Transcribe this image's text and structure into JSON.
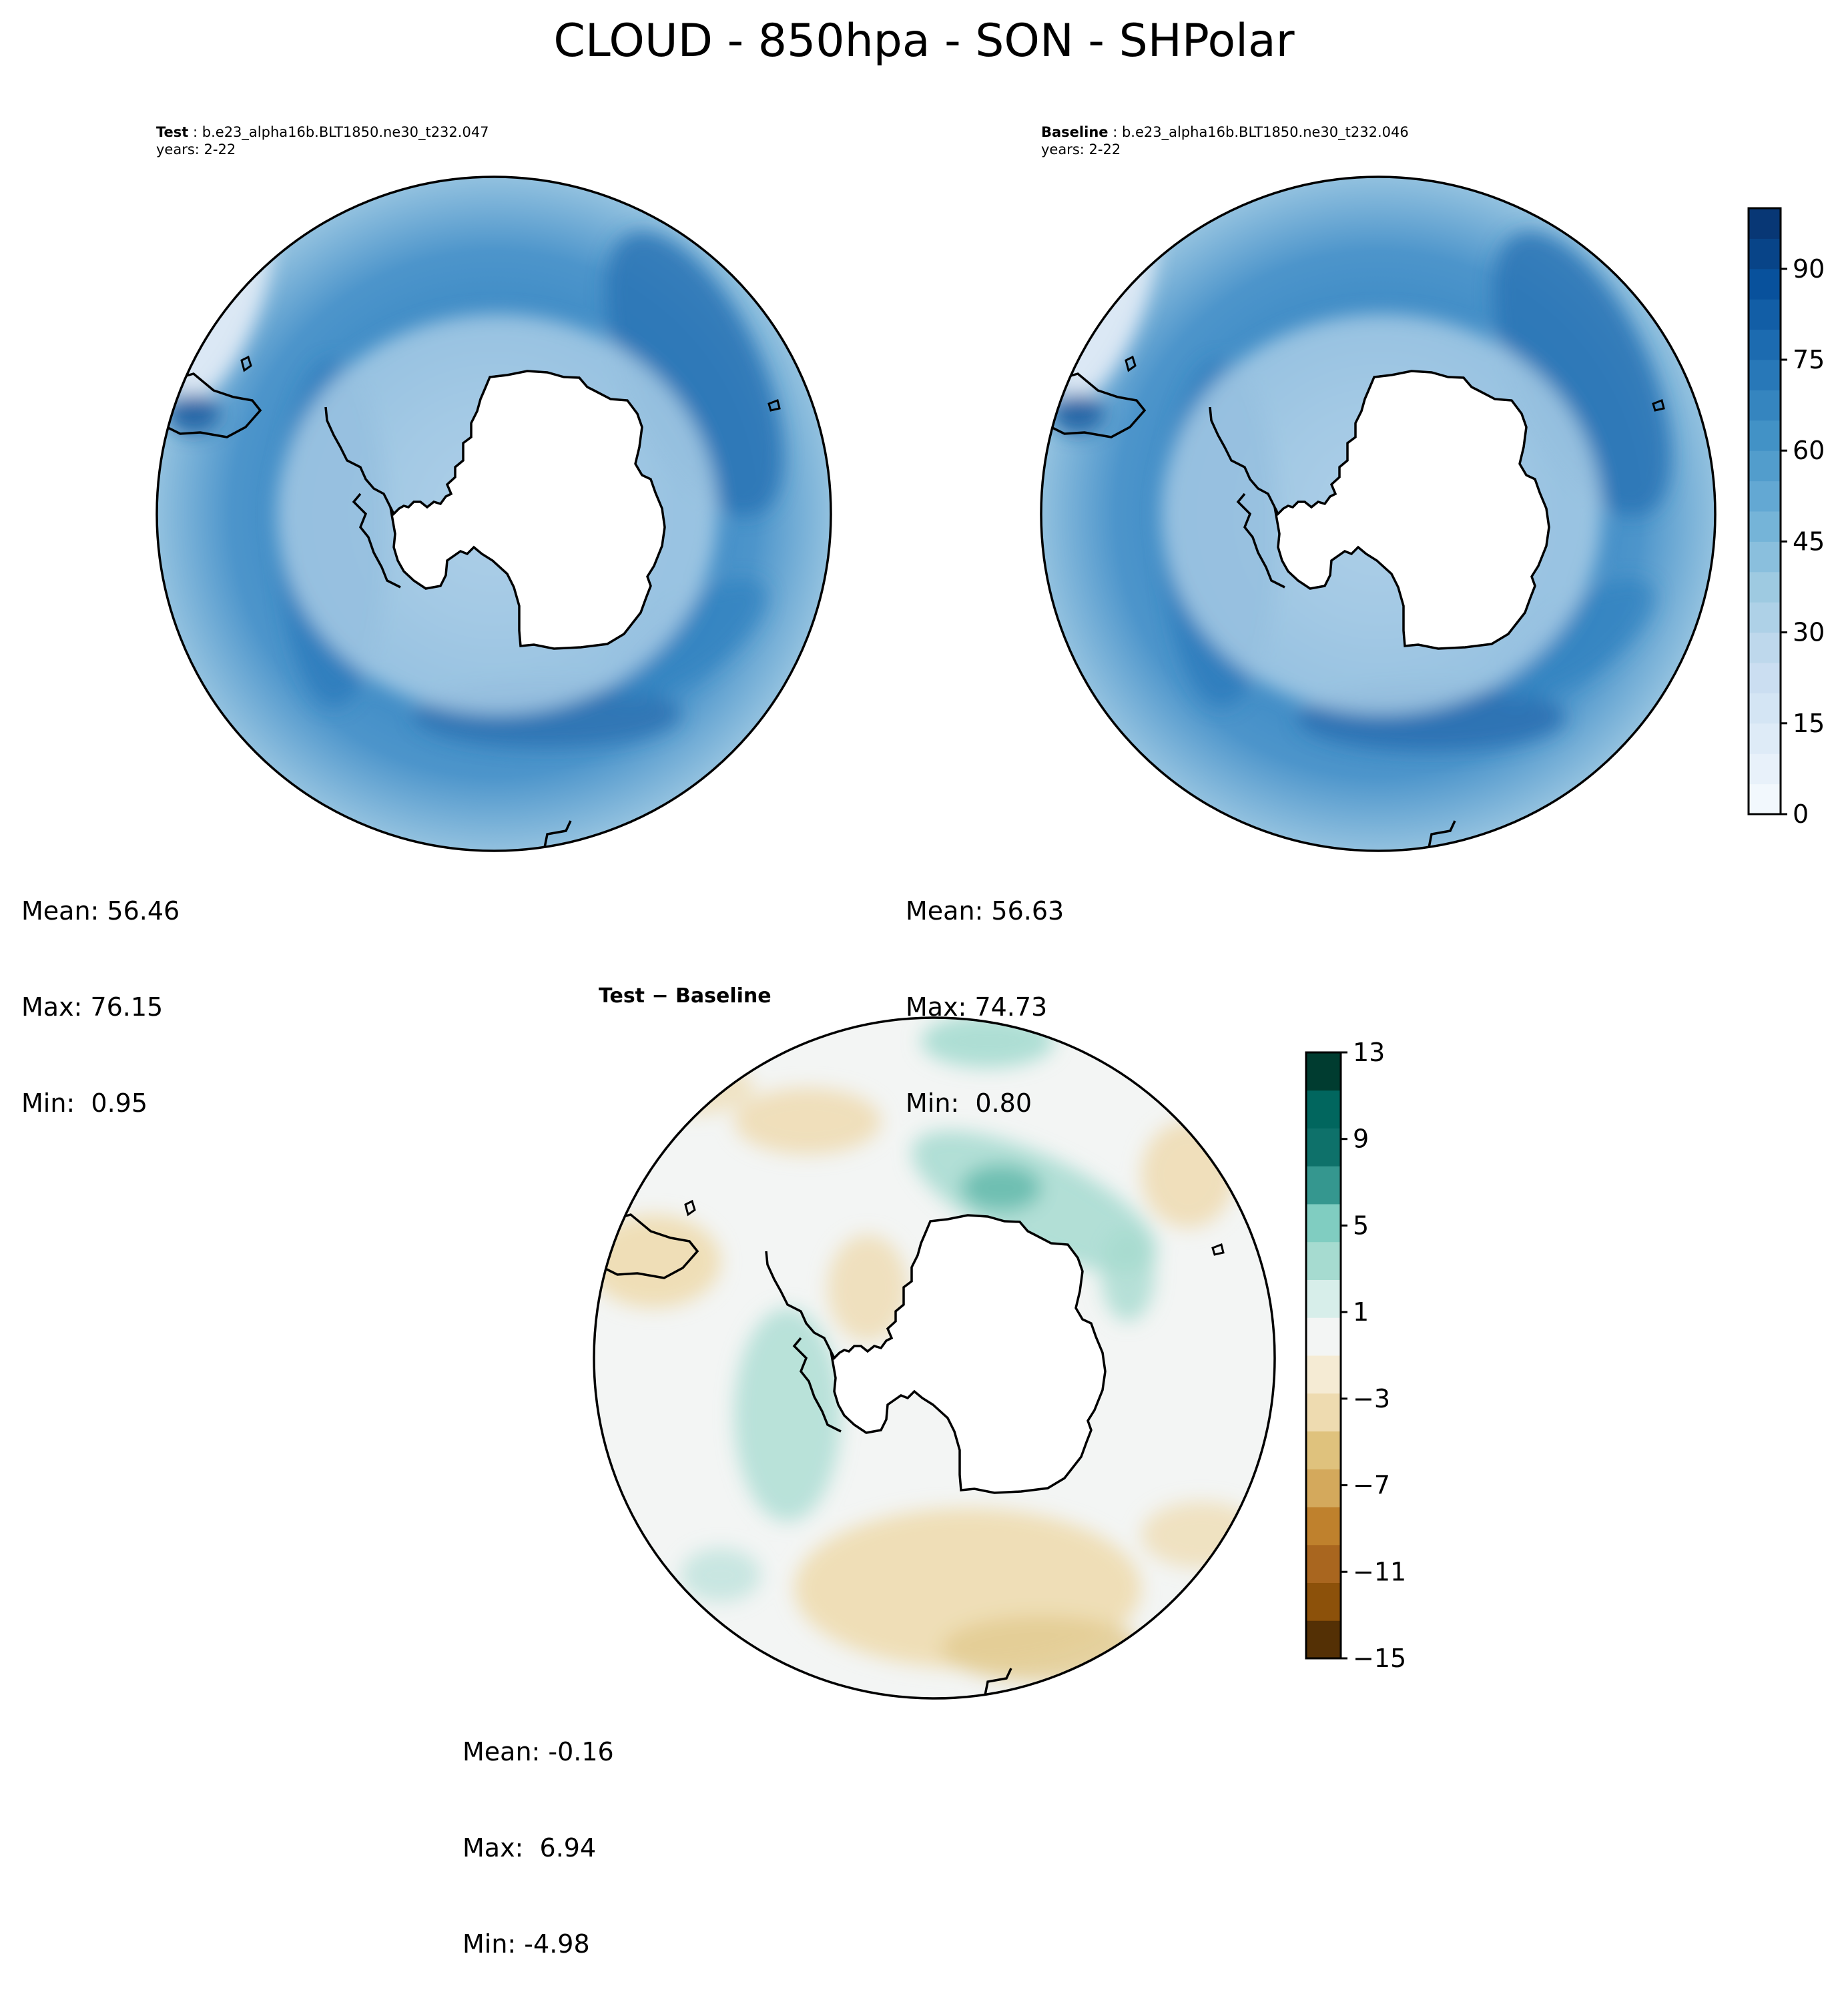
{
  "figure": {
    "title": "CLOUD - 850hpa - SON - SHPolar"
  },
  "panels": {
    "test": {
      "label": "Test",
      "case": "b.e23_alpha16b.BLT1850.ne30_t232.047",
      "years": "years: 2-22",
      "mean": "Mean: 56.46",
      "max": "Max: 76.15",
      "min": "Min:  0.95"
    },
    "baseline": {
      "label": "Baseline",
      "case": "b.e23_alpha16b.BLT1850.ne30_t232.046",
      "years": "years: 2-22",
      "mean": "Mean: 56.63",
      "max": "Max: 74.73",
      "min": "Min:  0.80"
    },
    "diff": {
      "title": "Test − Baseline",
      "mean": "Mean: -0.16",
      "max": "Max:  6.94",
      "min": "Min: -4.98"
    }
  },
  "chart_data": [
    {
      "type": "heatmap",
      "projection": "south-polar-stereographic",
      "title": "Test : b.e23_alpha16b.BLT1850.ne30_t232.047",
      "variable": "CLOUD",
      "level": "850hpa",
      "season": "SON",
      "region": "SHPolar",
      "stats": {
        "mean": 56.46,
        "max": 76.15,
        "min": 0.95
      }
    },
    {
      "type": "heatmap",
      "projection": "south-polar-stereographic",
      "title": "Baseline : b.e23_alpha16b.BLT1850.ne30_t232.046",
      "variable": "CLOUD",
      "level": "850hpa",
      "season": "SON",
      "region": "SHPolar",
      "stats": {
        "mean": 56.63,
        "max": 74.73,
        "min": 0.8
      },
      "colorbar": {
        "cmap": "Blues",
        "range": [
          0,
          100
        ],
        "ticks": [
          0,
          15,
          30,
          45,
          60,
          75,
          90
        ],
        "tick_labels": [
          "0",
          "15",
          "30",
          "45",
          "60",
          "75",
          "90"
        ],
        "levels": 20
      }
    },
    {
      "type": "heatmap",
      "projection": "south-polar-stereographic",
      "title": "Test − Baseline",
      "stats": {
        "mean": -0.16,
        "max": 6.94,
        "min": -4.98
      },
      "colorbar": {
        "cmap": "BrBG",
        "range": [
          -15,
          13
        ],
        "ticks": [
          -15,
          -11,
          -7,
          -3,
          1,
          5,
          9,
          13
        ],
        "tick_labels": [
          "−15",
          "−11",
          "−7",
          "−3",
          "1",
          "5",
          "9",
          "13"
        ],
        "level_colors": [
          "#543005",
          "#8c510a",
          "#a9661f",
          "#bf812d",
          "#d4a95c",
          "#dfc27d",
          "#eedbb0",
          "#f5ebd4",
          "#f3f5f4",
          "#d7eeea",
          "#a6dbd0",
          "#80cdc1",
          "#35978f",
          "#0e716a",
          "#01665e",
          "#003c30"
        ]
      }
    }
  ]
}
